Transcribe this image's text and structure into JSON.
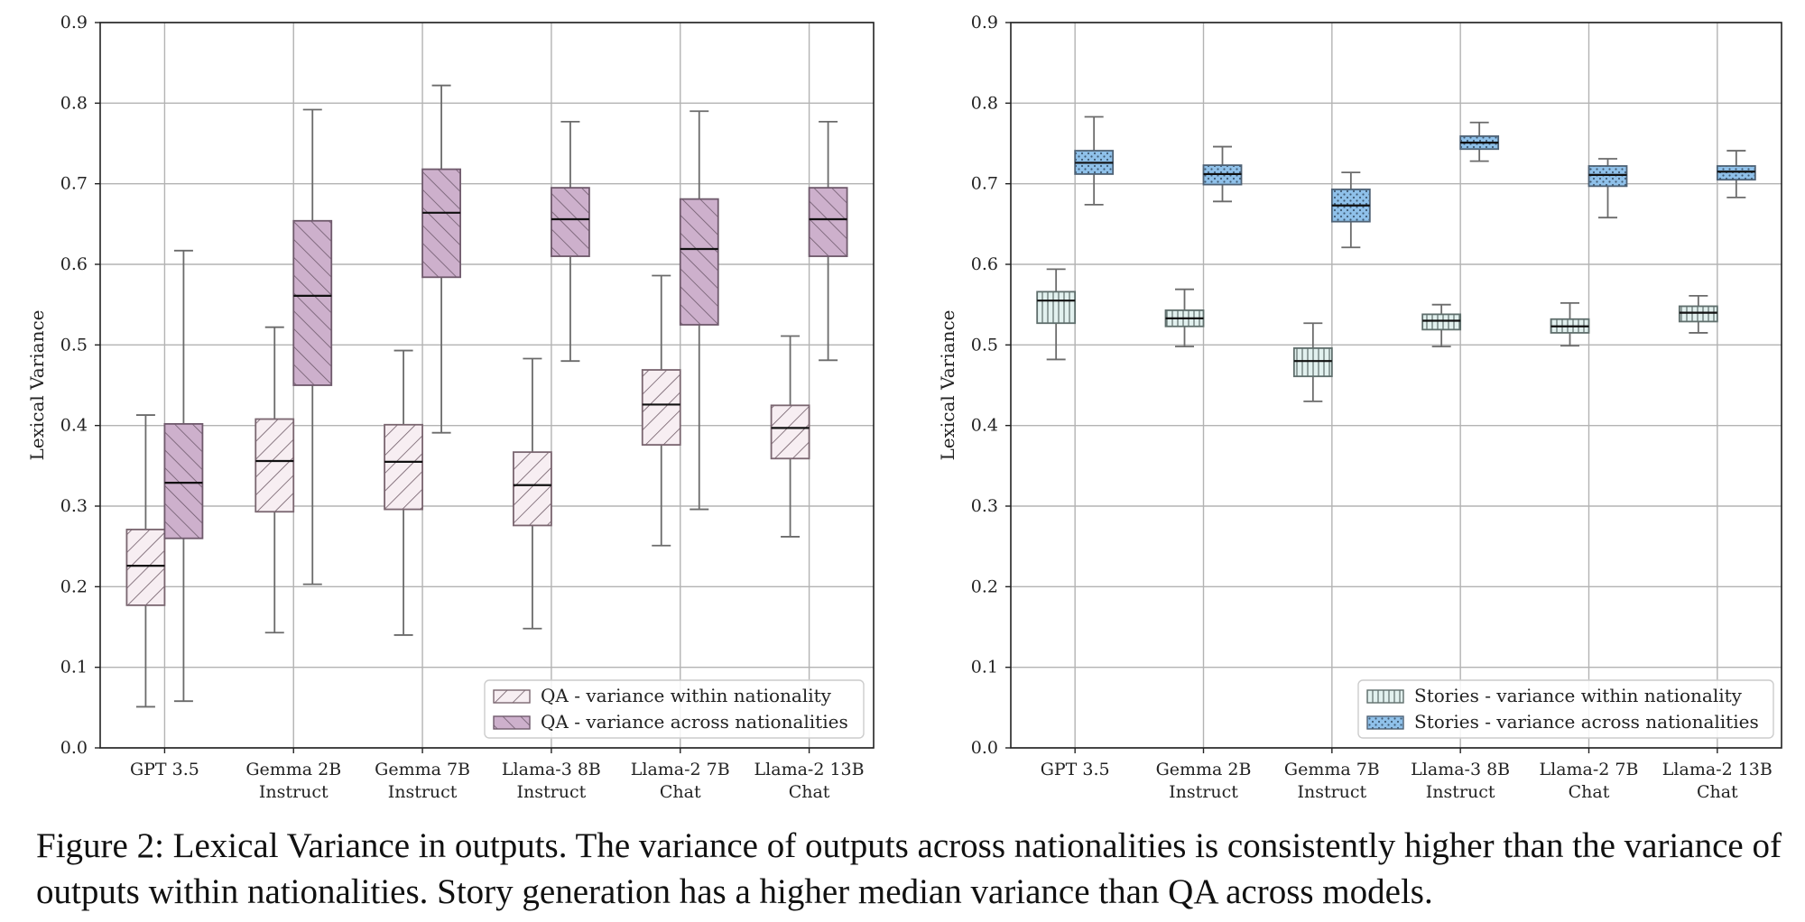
{
  "chart_data": [
    {
      "type": "boxplot",
      "ylabel": "Lexical Variance",
      "ylim": [
        0,
        0.9
      ],
      "yticks": [
        "0.0",
        "0.1",
        "0.2",
        "0.3",
        "0.4",
        "0.5",
        "0.6",
        "0.7",
        "0.8",
        "0.9"
      ],
      "grid": true,
      "legend_position": "bottom-right",
      "categories": [
        [
          "GPT 3.5"
        ],
        [
          "Gemma 2B",
          "Instruct"
        ],
        [
          "Gemma 7B",
          "Instruct"
        ],
        [
          "Llama-3 8B",
          "Instruct"
        ],
        [
          "Llama-2 7B",
          "Chat"
        ],
        [
          "Llama-2 13B",
          "Chat"
        ]
      ],
      "series": [
        {
          "name": "QA - variance within nationality",
          "fill": "#f7eef2",
          "stroke": "#7a6670",
          "hatch": "diag-back",
          "boxes": [
            {
              "whislo": 0.051,
              "q1": 0.177,
              "med": 0.226,
              "q3": 0.271,
              "whishi": 0.413
            },
            {
              "whislo": 0.143,
              "q1": 0.293,
              "med": 0.356,
              "q3": 0.408,
              "whishi": 0.522
            },
            {
              "whislo": 0.14,
              "q1": 0.296,
              "med": 0.355,
              "q3": 0.401,
              "whishi": 0.493
            },
            {
              "whislo": 0.148,
              "q1": 0.276,
              "med": 0.326,
              "q3": 0.367,
              "whishi": 0.483
            },
            {
              "whislo": 0.251,
              "q1": 0.376,
              "med": 0.426,
              "q3": 0.469,
              "whishi": 0.586
            },
            {
              "whislo": 0.262,
              "q1": 0.359,
              "med": 0.397,
              "q3": 0.425,
              "whishi": 0.511
            }
          ]
        },
        {
          "name": "QA - variance across nationalities",
          "fill": "#cdb0cc",
          "stroke": "#6f5a6c",
          "hatch": "diag-fwd",
          "boxes": [
            {
              "whislo": 0.058,
              "q1": 0.26,
              "med": 0.329,
              "q3": 0.402,
              "whishi": 0.617
            },
            {
              "whislo": 0.203,
              "q1": 0.45,
              "med": 0.561,
              "q3": 0.654,
              "whishi": 0.792
            },
            {
              "whislo": 0.391,
              "q1": 0.584,
              "med": 0.664,
              "q3": 0.718,
              "whishi": 0.822
            },
            {
              "whislo": 0.48,
              "q1": 0.61,
              "med": 0.656,
              "q3": 0.695,
              "whishi": 0.777
            },
            {
              "whislo": 0.296,
              "q1": 0.525,
              "med": 0.619,
              "q3": 0.681,
              "whishi": 0.79
            },
            {
              "whislo": 0.481,
              "q1": 0.61,
              "med": 0.656,
              "q3": 0.695,
              "whishi": 0.777
            }
          ]
        }
      ]
    },
    {
      "type": "boxplot",
      "ylabel": "Lexical Variance",
      "ylim": [
        0,
        0.9
      ],
      "yticks": [
        "0.0",
        "0.1",
        "0.2",
        "0.3",
        "0.4",
        "0.5",
        "0.6",
        "0.7",
        "0.8",
        "0.9"
      ],
      "grid": true,
      "legend_position": "bottom-right",
      "categories": [
        [
          "GPT 3.5"
        ],
        [
          "Gemma 2B",
          "Instruct"
        ],
        [
          "Gemma 7B",
          "Instruct"
        ],
        [
          "Llama-3 8B",
          "Instruct"
        ],
        [
          "Llama-2 7B",
          "Chat"
        ],
        [
          "Llama-2 13B",
          "Chat"
        ]
      ],
      "series": [
        {
          "name": "Stories - variance within nationality",
          "fill": "#e2f1ef",
          "stroke": "#5f6e6c",
          "hatch": "vertical",
          "boxes": [
            {
              "whislo": 0.482,
              "q1": 0.527,
              "med": 0.555,
              "q3": 0.566,
              "whishi": 0.594
            },
            {
              "whislo": 0.498,
              "q1": 0.523,
              "med": 0.533,
              "q3": 0.543,
              "whishi": 0.569
            },
            {
              "whislo": 0.43,
              "q1": 0.461,
              "med": 0.48,
              "q3": 0.496,
              "whishi": 0.527
            },
            {
              "whislo": 0.498,
              "q1": 0.519,
              "med": 0.53,
              "q3": 0.538,
              "whishi": 0.55
            },
            {
              "whislo": 0.499,
              "q1": 0.515,
              "med": 0.523,
              "q3": 0.532,
              "whishi": 0.552
            },
            {
              "whislo": 0.515,
              "q1": 0.529,
              "med": 0.54,
              "q3": 0.548,
              "whishi": 0.561
            }
          ]
        },
        {
          "name": "Stories - variance across nationalities",
          "fill": "#8fc1ea",
          "stroke": "#4f6275",
          "hatch": "dots",
          "boxes": [
            {
              "whislo": 0.674,
              "q1": 0.712,
              "med": 0.726,
              "q3": 0.741,
              "whishi": 0.783
            },
            {
              "whislo": 0.678,
              "q1": 0.699,
              "med": 0.712,
              "q3": 0.723,
              "whishi": 0.746
            },
            {
              "whislo": 0.621,
              "q1": 0.653,
              "med": 0.673,
              "q3": 0.693,
              "whishi": 0.714
            },
            {
              "whislo": 0.728,
              "q1": 0.743,
              "med": 0.751,
              "q3": 0.759,
              "whishi": 0.776
            },
            {
              "whislo": 0.658,
              "q1": 0.697,
              "med": 0.711,
              "q3": 0.722,
              "whishi": 0.731
            },
            {
              "whislo": 0.683,
              "q1": 0.705,
              "med": 0.715,
              "q3": 0.722,
              "whishi": 0.741
            }
          ]
        }
      ]
    }
  ],
  "caption": "Figure 2: Lexical Variance in outputs. The variance of outputs across nationalities is consistently higher than the variance of outputs within nationalities. Story generation has a higher median variance than QA across models."
}
